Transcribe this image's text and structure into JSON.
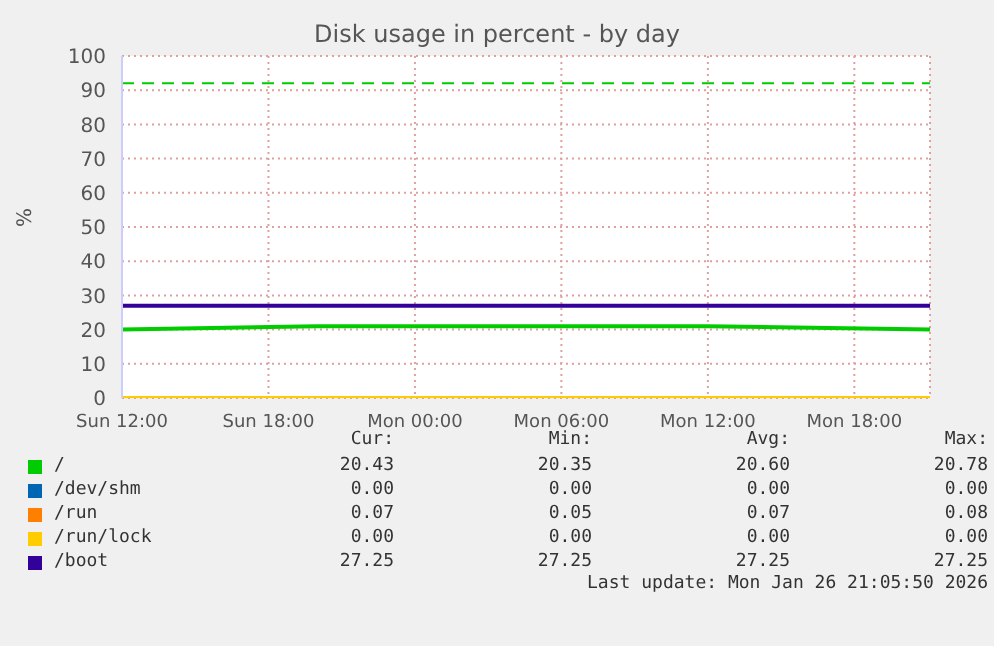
{
  "chart_data": {
    "type": "line",
    "title": "Disk usage in percent - by day",
    "ylabel": "%",
    "x": [
      "2026-01-25T12:00",
      "2026-01-25T20:00",
      "2026-01-26T04:00",
      "2026-01-26T12:00",
      "2026-01-26T21:06"
    ],
    "xlim": [
      "2026-01-25T12:00",
      "2026-01-26T21:06"
    ],
    "xticks": [
      {
        "value": "2026-01-25T12:00",
        "label": "Sun 12:00"
      },
      {
        "value": "2026-01-25T18:00",
        "label": "Sun 18:00"
      },
      {
        "value": "2026-01-26T00:00",
        "label": "Mon 00:00"
      },
      {
        "value": "2026-01-26T06:00",
        "label": "Mon 06:00"
      },
      {
        "value": "2026-01-26T12:00",
        "label": "Mon 12:00"
      },
      {
        "value": "2026-01-26T18:00",
        "label": "Mon 18:00"
      }
    ],
    "ylim": [
      0,
      100
    ],
    "yticks": [
      0,
      10,
      20,
      30,
      40,
      50,
      60,
      70,
      80,
      90,
      100
    ],
    "series": [
      {
        "name": "/",
        "color": "#00cc00",
        "values": [
          20,
          21,
          21,
          21,
          20
        ]
      },
      {
        "name": "/dev/shm",
        "color": "#0066b3",
        "values": [
          null,
          null,
          null,
          null,
          null
        ]
      },
      {
        "name": "/run",
        "color": "#ff8000",
        "values": [
          null,
          null,
          null,
          null,
          null
        ]
      },
      {
        "name": "/run/lock",
        "color": "#ffcc00",
        "values": [
          0,
          0,
          0,
          0,
          0
        ]
      },
      {
        "name": "/boot",
        "color": "#330099",
        "values": [
          27,
          27,
          27,
          27,
          27
        ]
      }
    ],
    "ref_lines": [
      {
        "axis": "y",
        "value": 92,
        "color": "#00cc00",
        "line_style": "dashed"
      }
    ],
    "annotations": [
      "Cur:",
      "Min:",
      "Avg:",
      "Max:",
      "20.43",
      "20.35",
      "20.60",
      "20.78",
      "0.00",
      "0.00",
      "0.00",
      "0.00",
      "0.07",
      "0.05",
      "0.07",
      "0.08",
      "0.00",
      "0.00",
      "0.00",
      "0.00",
      "27.25",
      "27.25",
      "27.25",
      "27.25",
      "Last update: Mon Jan 26 21:05:50 2026"
    ],
    "grid": true,
    "legend": "bottom",
    "marker": "none",
    "line_style": "solid"
  }
}
